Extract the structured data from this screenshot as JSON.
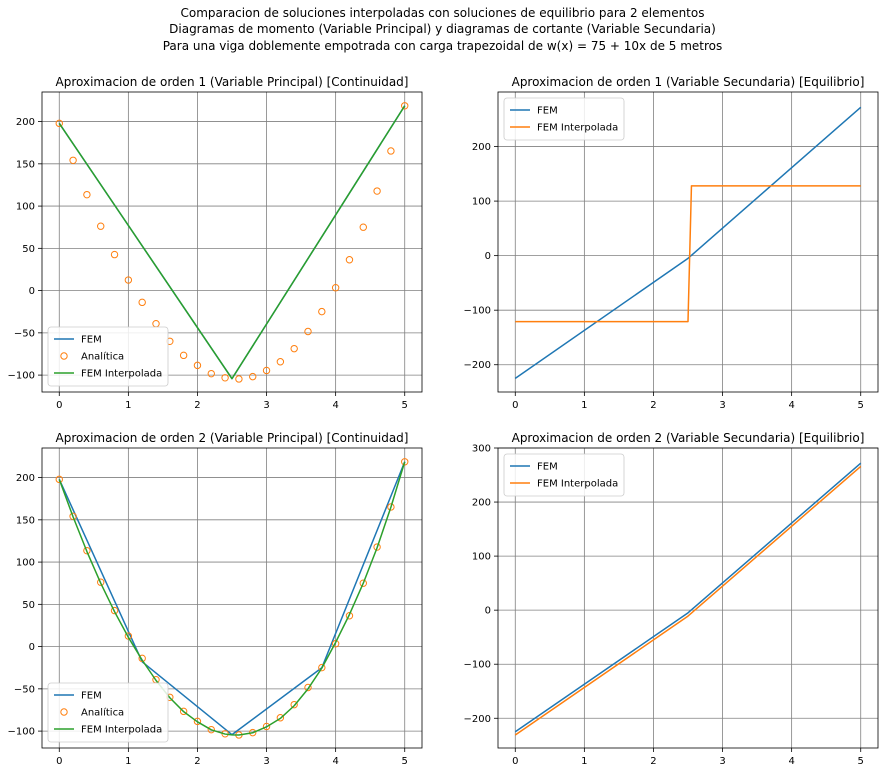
{
  "figure": {
    "suptitle": [
      "Comparacion de soluciones interpoladas con soluciones de equilibrio para 2 elementos",
      "Diagramas de momento (Variable Principal) y diagramas de cortante (Variable Secundaria)",
      "Para una viga doblemente empotrada con carga trapezoidal de w(x) = 75 + 10x de 5 metros"
    ]
  },
  "colors": {
    "blue": "#1f77b4",
    "orange": "#ff7f0e",
    "green": "#2ca02c",
    "grid": "#808080"
  },
  "chart_data": [
    {
      "type": "line",
      "title": "Aproximacion de orden 1 (Variable Principal) [Continuidad]",
      "xlim": [
        -0.25,
        5.25
      ],
      "ylim": [
        -120,
        235
      ],
      "xticks": [
        0,
        1,
        2,
        3,
        4,
        5
      ],
      "yticks": [
        -100,
        -50,
        0,
        50,
        100,
        150,
        200
      ],
      "grid": true,
      "legend": "lower-left",
      "series": [
        {
          "name": "FEM",
          "kind": "line",
          "color": "#1f77b4",
          "x": [
            0,
            2.5,
            5
          ],
          "y": [
            197.9,
            -104.2,
            218.7
          ]
        },
        {
          "name": "Analítica",
          "kind": "markers",
          "color": "#ff7f0e",
          "x": [
            0,
            0.2,
            0.4,
            0.6,
            0.8,
            1.0,
            1.2,
            1.4,
            1.6,
            1.8,
            2.0,
            2.2,
            2.4,
            2.6,
            2.8,
            3.0,
            3.2,
            3.4,
            3.6,
            3.8,
            4.0,
            4.2,
            4.4,
            4.6,
            4.8,
            5.0
          ],
          "y": [
            197.9,
            154.2,
            113.5,
            76.2,
            42.6,
            12.5,
            -13.9,
            -39.2,
            -60.0,
            -76.6,
            -88.5,
            -98.3,
            -103.2,
            -104.6,
            -101.8,
            -94.5,
            -84.2,
            -68.7,
            -48.4,
            -24.9,
            3.4,
            36.5,
            75.0,
            117.8,
            165.2,
            218.7
          ]
        },
        {
          "name": "FEM Interpolada",
          "kind": "line",
          "color": "#2ca02c",
          "x": [
            0,
            2.5,
            5
          ],
          "y": [
            197.9,
            -104.2,
            218.7
          ]
        }
      ]
    },
    {
      "type": "line",
      "title": "Aproximacion de orden 1 (Variable Secundaria) [Equilibrio]",
      "xlim": [
        -0.25,
        5.25
      ],
      "ylim": [
        -250,
        300
      ],
      "xticks": [
        0,
        1,
        2,
        3,
        4,
        5
      ],
      "yticks": [
        -200,
        -100,
        0,
        100,
        200
      ],
      "grid": true,
      "legend": "upper-left",
      "series": [
        {
          "name": "FEM",
          "kind": "line",
          "color": "#1f77b4",
          "x": [
            0,
            2.5,
            5
          ],
          "y": [
            -225,
            -5,
            272
          ]
        },
        {
          "name": "FEM Interpolada",
          "kind": "line",
          "color": "#ff7f0e",
          "x": [
            0,
            2.5,
            2.55,
            5
          ],
          "y": [
            -121,
            -121,
            128,
            128
          ]
        }
      ]
    },
    {
      "type": "line",
      "title": "Aproximacion de orden 2 (Variable Principal) [Continuidad]",
      "xlim": [
        -0.25,
        5.25
      ],
      "ylim": [
        -120,
        235
      ],
      "xticks": [
        0,
        1,
        2,
        3,
        4,
        5
      ],
      "yticks": [
        -100,
        -50,
        0,
        50,
        100,
        150,
        200
      ],
      "grid": true,
      "legend": "lower-left",
      "series": [
        {
          "name": "FEM",
          "kind": "line",
          "color": "#1f77b4",
          "x": [
            0,
            1.2,
            2.5,
            3.8,
            5
          ],
          "y": [
            197.9,
            -18,
            -104.2,
            -25,
            218.7
          ]
        },
        {
          "name": "Analítica",
          "kind": "markers",
          "color": "#ff7f0e",
          "x": [
            0,
            0.2,
            0.4,
            0.6,
            0.8,
            1.0,
            1.2,
            1.4,
            1.6,
            1.8,
            2.0,
            2.2,
            2.4,
            2.6,
            2.8,
            3.0,
            3.2,
            3.4,
            3.6,
            3.8,
            4.0,
            4.2,
            4.4,
            4.6,
            4.8,
            5.0
          ],
          "y": [
            197.9,
            154.2,
            113.5,
            76.2,
            42.6,
            12.5,
            -13.9,
            -39.2,
            -60.0,
            -76.6,
            -88.5,
            -98.3,
            -103.2,
            -104.6,
            -101.8,
            -94.5,
            -84.2,
            -68.7,
            -48.4,
            -24.9,
            3.4,
            36.5,
            75.0,
            117.8,
            165.2,
            218.7
          ]
        },
        {
          "name": "FEM Interpolada",
          "kind": "line",
          "color": "#2ca02c",
          "x": [
            0,
            0.2,
            0.4,
            0.6,
            0.8,
            1.0,
            1.2,
            1.4,
            1.6,
            1.8,
            2.0,
            2.2,
            2.4,
            2.5,
            2.6,
            2.8,
            3.0,
            3.2,
            3.4,
            3.6,
            3.8,
            4.0,
            4.2,
            4.4,
            4.6,
            4.8,
            5.0
          ],
          "y": [
            197.9,
            153.5,
            112.5,
            75.0,
            41.3,
            11.0,
            -16.0,
            -40.0,
            -60.5,
            -77.0,
            -89.0,
            -98.5,
            -103.5,
            -104.5,
            -104.6,
            -102.0,
            -95.0,
            -85.0,
            -70.0,
            -50.0,
            -25.5,
            5.0,
            38.0,
            75.0,
            117.0,
            165.0,
            218.7
          ]
        }
      ]
    },
    {
      "type": "line",
      "title": "Aproximacion de orden 2 (Variable Secundaria) [Equilibrio]",
      "xlim": [
        -0.25,
        5.25
      ],
      "ylim": [
        -255,
        300
      ],
      "xticks": [
        0,
        1,
        2,
        3,
        4,
        5
      ],
      "yticks": [
        -200,
        -100,
        0,
        100,
        200,
        300
      ],
      "grid": true,
      "legend": "upper-left",
      "series": [
        {
          "name": "FEM",
          "kind": "line",
          "color": "#1f77b4",
          "x": [
            0,
            2.5,
            5
          ],
          "y": [
            -225,
            -5,
            272
          ]
        },
        {
          "name": "FEM Interpolada",
          "kind": "line",
          "color": "#ff7f0e",
          "x": [
            0,
            2.5,
            5
          ],
          "y": [
            -231,
            -11,
            266
          ]
        }
      ]
    }
  ]
}
